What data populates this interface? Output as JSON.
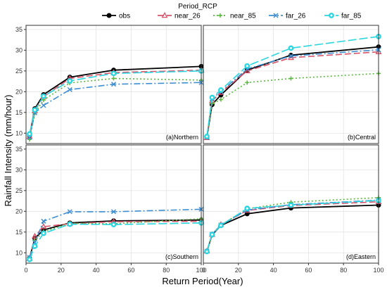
{
  "chart_data": {
    "type": "line",
    "legend": {
      "title": "Period_RCP",
      "position": "top",
      "entries": [
        "obs",
        "near_26",
        "near_85",
        "far_26",
        "far_85"
      ]
    },
    "xlabel": "Return Period(Year)",
    "ylabel": "Rainfall Intensity (mm/hour)",
    "xlim": [
      0,
      100
    ],
    "ylim": [
      7.5,
      36
    ],
    "x_ticks": [
      0,
      20,
      40,
      60,
      80,
      100
    ],
    "y_ticks": [
      10,
      15,
      20,
      25,
      30,
      35
    ],
    "grid": true,
    "x": [
      2,
      5,
      10,
      25,
      50,
      100
    ],
    "series_styles": [
      {
        "name": "obs",
        "color": "#000000",
        "dash": "",
        "marker": "circle"
      },
      {
        "name": "near_26",
        "color": "#d9546a",
        "dash": "9,4",
        "marker": "triangle"
      },
      {
        "name": "near_85",
        "color": "#57b83b",
        "dash": "2,3",
        "marker": "plus"
      },
      {
        "name": "far_26",
        "color": "#3f8fd0",
        "dash": "9,3,2,3",
        "marker": "cross"
      },
      {
        "name": "far_85",
        "color": "#2bd6e0",
        "dash": "12,4",
        "marker": "diamond"
      }
    ],
    "panels": [
      {
        "label": "(a)Northern",
        "series": [
          {
            "name": "obs",
            "values": [
              9.4,
              15.9,
              19.3,
              23.5,
              25.2,
              26.1
            ]
          },
          {
            "name": "near_26",
            "values": [
              9.2,
              15.4,
              18.8,
              23.2,
              24.6,
              25.2
            ]
          },
          {
            "name": "near_85",
            "values": [
              8.5,
              14.8,
              18.0,
              22.1,
              23.2,
              22.8
            ]
          },
          {
            "name": "far_26",
            "values": [
              9.0,
              14.9,
              16.7,
              20.5,
              21.8,
              22.2
            ]
          },
          {
            "name": "far_85",
            "values": [
              9.8,
              15.6,
              18.9,
              22.6,
              24.4,
              25.0
            ]
          }
        ]
      },
      {
        "label": "(b)Central",
        "series": [
          {
            "name": "obs",
            "values": [
              9.0,
              16.9,
              19.2,
              25.2,
              28.8,
              30.8
            ]
          },
          {
            "name": "near_26",
            "values": [
              8.9,
              17.8,
              19.8,
              25.0,
              28.2,
              29.6
            ]
          },
          {
            "name": "near_85",
            "values": [
              9.1,
              17.1,
              18.1,
              22.2,
              23.2,
              24.4
            ]
          },
          {
            "name": "far_26",
            "values": [
              9.0,
              18.3,
              20.0,
              25.5,
              28.6,
              30.1
            ]
          },
          {
            "name": "far_85",
            "values": [
              9.2,
              18.6,
              20.4,
              26.2,
              30.5,
              33.3
            ]
          }
        ]
      },
      {
        "label": "(c)Southern",
        "series": [
          {
            "name": "obs",
            "values": [
              8.7,
              13.5,
              15.5,
              17.2,
              17.7,
              17.9
            ]
          },
          {
            "name": "near_26",
            "values": [
              8.6,
              14.0,
              16.3,
              17.0,
              17.5,
              17.6
            ]
          },
          {
            "name": "near_85",
            "values": [
              8.5,
              13.0,
              15.1,
              17.1,
              17.0,
              18.2
            ]
          },
          {
            "name": "far_26",
            "values": [
              8.9,
              12.5,
              17.6,
              19.9,
              19.9,
              20.5
            ]
          },
          {
            "name": "far_85",
            "values": [
              8.4,
              11.6,
              14.7,
              16.9,
              16.8,
              17.2
            ]
          }
        ]
      },
      {
        "label": "(d)Eastern",
        "series": [
          {
            "name": "obs",
            "values": [
              10.3,
              14.3,
              16.6,
              19.4,
              20.8,
              21.5
            ]
          },
          {
            "name": "near_26",
            "values": [
              10.4,
              14.4,
              16.8,
              20.2,
              21.4,
              22.3
            ]
          },
          {
            "name": "near_85",
            "values": [
              10.3,
              14.5,
              16.7,
              20.6,
              22.2,
              23.3
            ]
          },
          {
            "name": "far_26",
            "values": [
              10.4,
              14.5,
              16.7,
              20.3,
              21.6,
              22.7
            ]
          },
          {
            "name": "far_85",
            "values": [
              10.3,
              14.4,
              16.6,
              20.7,
              21.5,
              22.6
            ]
          }
        ]
      }
    ]
  }
}
